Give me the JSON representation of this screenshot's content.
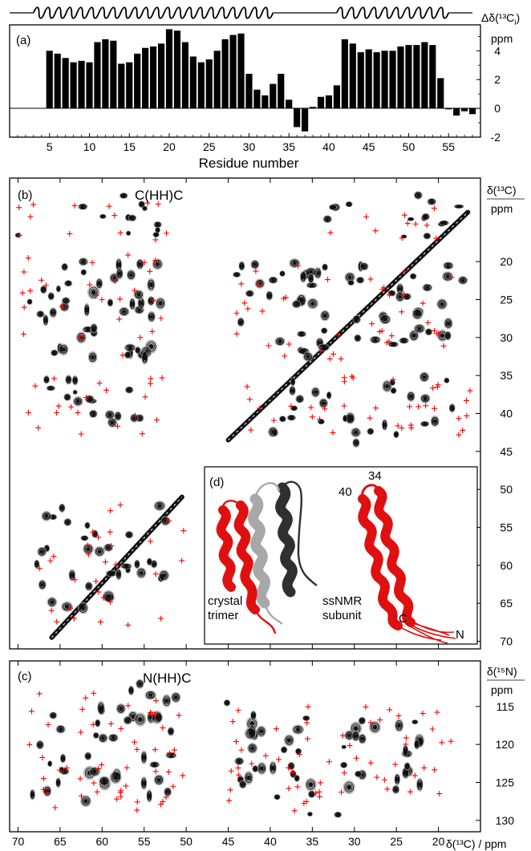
{
  "secondary_structure": {
    "helices": [
      {
        "start": 3,
        "end": 33
      },
      {
        "start": 41,
        "end": 55
      }
    ],
    "loops": [
      {
        "start": 0,
        "end": 3
      },
      {
        "start": 33,
        "end": 41
      },
      {
        "start": 55,
        "end": 58
      }
    ]
  },
  "panel_a": {
    "label": "(a)",
    "ylabel_line1": "Δδ(¹³C",
    "ylabel_sub": "i",
    "ylabel_close": ")",
    "yunit": "ppm",
    "xlabel": "Residue number"
  },
  "panel_b": {
    "label": "(b)",
    "title": "C(HH)C",
    "axis_label": "δ(¹³C)",
    "axis_unit": "ppm",
    "yticks": [
      20,
      25,
      30,
      35,
      40,
      45,
      50,
      55,
      60,
      65,
      70
    ]
  },
  "panel_c": {
    "label": "(c)",
    "title": "N(HH)C",
    "axis_label": "δ(¹⁵N)",
    "axis_unit": "ppm",
    "yticks": [
      115,
      120,
      125,
      130
    ]
  },
  "panel_d": {
    "label": "(d)",
    "left_caption_line1": "crystal",
    "left_caption_line2": "trimer",
    "right_caption_line1": "ssNMR",
    "right_caption_line2": "subunit",
    "marker_34": "34",
    "marker_40": "40",
    "marker_c": "C",
    "marker_n": "N"
  },
  "bottom_axis": {
    "label": "δ(¹³C) / ppm",
    "ticks": [
      70,
      65,
      60,
      55,
      50,
      45,
      40,
      35,
      30,
      25,
      20
    ]
  },
  "colors": {
    "bars": "#000000",
    "crosspeak_marker": "#ff0000",
    "contour_dark": "#111111",
    "contour_light": "#9a9a9a",
    "helix_red": "#e01010",
    "helix_gray": "#a8a8a8",
    "helix_dark": "#303030"
  },
  "chart_data": [
    {
      "type": "bar",
      "title": "",
      "xlabel": "Residue number",
      "ylabel": "Δδ(¹³Ci) ppm",
      "xlim": [
        0,
        59
      ],
      "ylim": [
        -2,
        5.8
      ],
      "xticks": [
        5,
        10,
        15,
        20,
        25,
        30,
        35,
        40,
        45,
        50,
        55
      ],
      "yticks": [
        -2,
        0,
        2,
        4
      ],
      "categories": [
        5,
        6,
        7,
        8,
        9,
        10,
        11,
        12,
        13,
        14,
        15,
        16,
        17,
        18,
        19,
        20,
        21,
        22,
        23,
        24,
        25,
        26,
        27,
        28,
        29,
        30,
        31,
        32,
        33,
        34,
        35,
        36,
        37,
        38,
        39,
        40,
        41,
        42,
        43,
        44,
        45,
        46,
        47,
        48,
        49,
        50,
        51,
        52,
        53,
        54,
        55,
        56,
        57,
        58
      ],
      "values": [
        4.0,
        3.8,
        3.5,
        3.2,
        3.3,
        3.2,
        4.6,
        4.8,
        4.7,
        3.1,
        3.2,
        3.8,
        4.2,
        4.3,
        4.5,
        5.5,
        5.4,
        4.6,
        3.6,
        3.2,
        3.4,
        4.0,
        4.8,
        5.1,
        5.2,
        2.4,
        1.3,
        0.9,
        1.7,
        2.4,
        0.6,
        -1.3,
        -1.6,
        0.1,
        0.8,
        0.9,
        1.6,
        4.8,
        4.5,
        3.9,
        4.1,
        3.9,
        4.0,
        4.0,
        4.3,
        4.4,
        4.4,
        4.6,
        4.4,
        2.1,
        0.0,
        -0.5,
        -0.2,
        -0.4
      ]
    },
    {
      "type": "heatmap",
      "title": "C(HH)C",
      "xlabel": "δ(¹³C) / ppm",
      "ylabel": "δ(¹³C) ppm",
      "xlim": [
        71,
        15
      ],
      "ylim": [
        9,
        71
      ],
      "xticks": [
        70,
        65,
        60,
        55,
        50,
        45,
        40,
        35,
        30,
        25,
        20
      ],
      "yticks": [
        20,
        25,
        30,
        35,
        40,
        45,
        50,
        55,
        60,
        65,
        70
      ]
    },
    {
      "type": "heatmap",
      "title": "N(HH)C",
      "xlabel": "δ(¹³C) / ppm",
      "ylabel": "δ(¹⁵N) ppm",
      "xlim": [
        71,
        15
      ],
      "ylim": [
        109,
        131.5
      ],
      "xticks": [
        70,
        65,
        60,
        55,
        50,
        45,
        40,
        35,
        30,
        25,
        20
      ],
      "yticks": [
        115,
        120,
        125,
        130
      ]
    }
  ]
}
